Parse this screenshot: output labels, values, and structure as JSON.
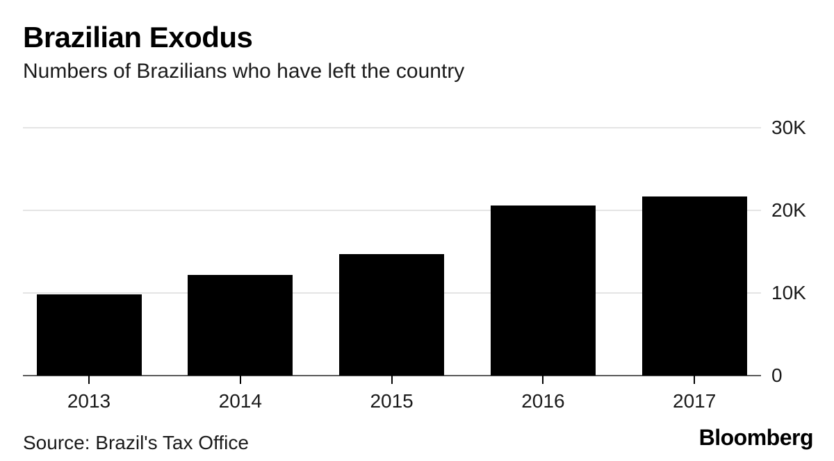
{
  "header": {
    "title": "Brazilian Exodus",
    "subtitle": "Numbers of Brazilians who have left the country"
  },
  "footer": {
    "source": "Source: Brazil's Tax Office",
    "brand": "Bloomberg"
  },
  "chart_data": {
    "type": "bar",
    "title": "Brazilian Exodus",
    "subtitle": "Numbers of Brazilians who have left the country",
    "categories": [
      "2013",
      "2014",
      "2015",
      "2016",
      "2017"
    ],
    "values": [
      9800,
      12200,
      14700,
      20600,
      21700
    ],
    "xlabel": "",
    "ylabel": "",
    "ylim": [
      0,
      30000
    ],
    "yticks": [
      {
        "value": 0,
        "label": "0"
      },
      {
        "value": 10000,
        "label": "10K"
      },
      {
        "value": 20000,
        "label": "20K"
      },
      {
        "value": 30000,
        "label": "30K"
      }
    ],
    "grid": true,
    "legend": "none",
    "y_axis_side": "right",
    "bar_color": "#000000",
    "gridline_color": "#e4e4e4",
    "baseline_color": "#595959",
    "source": "Source: Brazil's Tax Office",
    "brand": "Bloomberg"
  }
}
